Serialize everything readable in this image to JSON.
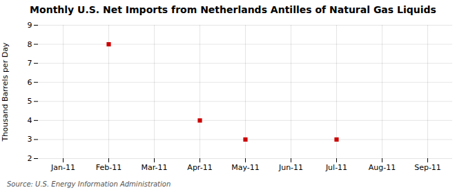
{
  "chart_data": {
    "type": "scatter",
    "title": "Monthly U.S. Net Imports from Netherlands Antilles of Natural Gas Liquids",
    "y_label": "Thousand Barrels per Day",
    "annotations": [
      "Source: U.S. Energy Information Administration"
    ],
    "categories": [
      "Jan-11",
      "Feb-11",
      "Mar-11",
      "Apr-11",
      "May-11",
      "Jun-11",
      "Jul-11",
      "Aug-11",
      "Sep-11"
    ],
    "values": [
      null,
      8,
      null,
      4,
      3,
      null,
      3,
      null,
      null
    ],
    "color": "#cc0000",
    "marker": "square",
    "ylim": [
      2,
      9
    ],
    "yticks": [
      2,
      3,
      4,
      5,
      6,
      7,
      8,
      9
    ],
    "grid": true
  }
}
